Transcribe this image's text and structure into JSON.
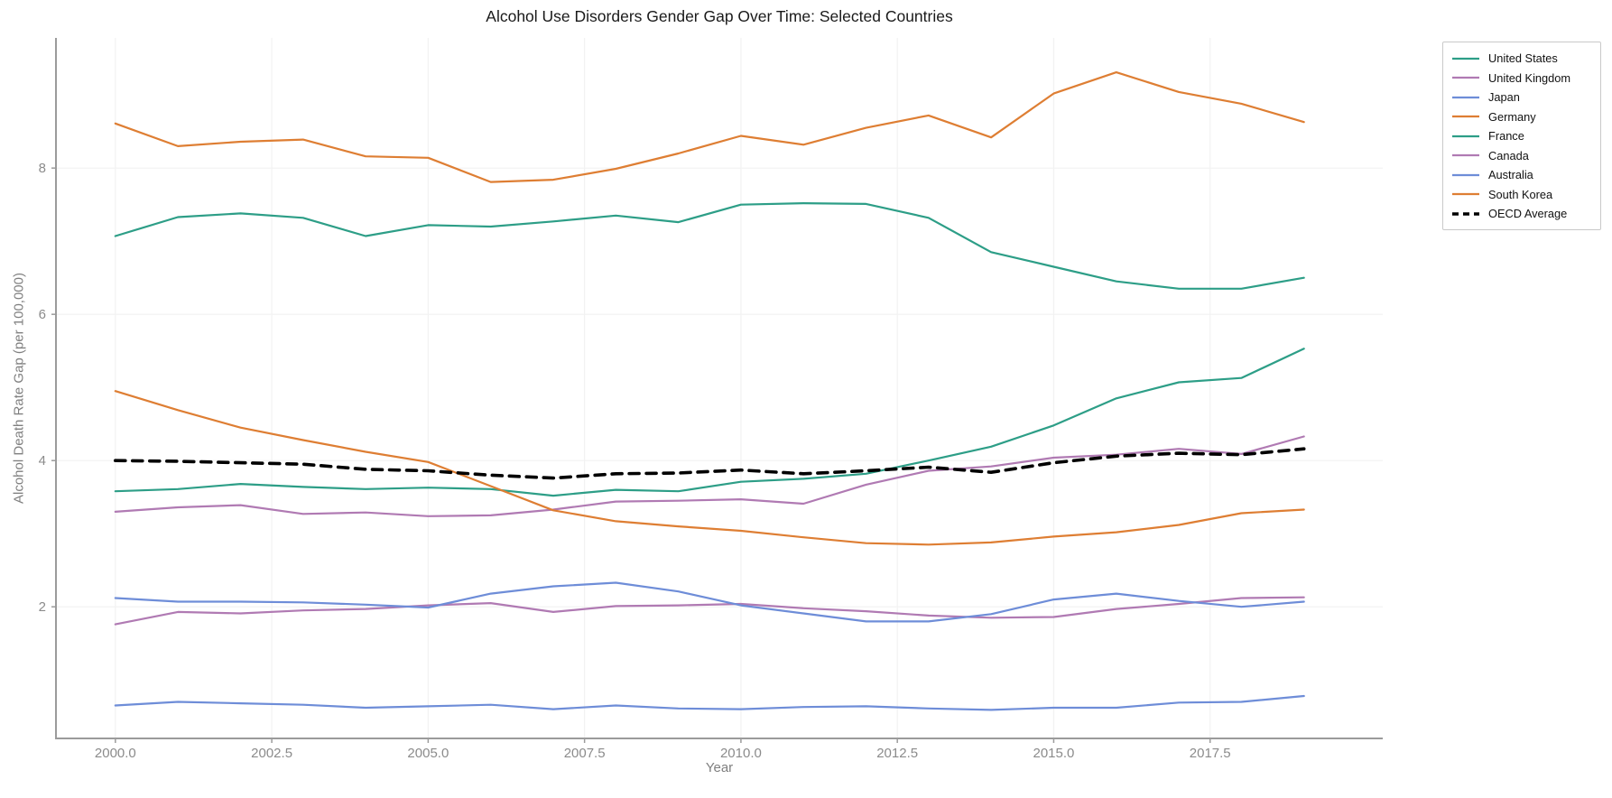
{
  "chart_data": {
    "type": "line",
    "title": "Alcohol Use Disorders Gender Gap Over Time: Selected Countries",
    "xlabel": "Year",
    "ylabel": "Alcohol Death Rate Gap (per 100,000)",
    "grid": true,
    "legend_position": "outside-top-right",
    "xlim": [
      1999.05,
      2020.26
    ],
    "ylim": [
      0.2,
      9.78
    ],
    "xticks": {
      "values": [
        2000,
        2002.5,
        2005,
        2007.5,
        2010,
        2012.5,
        2015,
        2017.5
      ],
      "labels": [
        "2000.0",
        "2002.5",
        "2005.0",
        "2007.5",
        "2010.0",
        "2012.5",
        "2015.0",
        "2017.5"
      ]
    },
    "yticks": {
      "values": [
        2,
        4,
        6,
        8
      ],
      "labels": [
        "2",
        "4",
        "6",
        "8"
      ]
    },
    "x": [
      2000,
      2001,
      2002,
      2003,
      2004,
      2005,
      2006,
      2007,
      2008,
      2009,
      2010,
      2011,
      2012,
      2013,
      2014,
      2015,
      2016,
      2017,
      2018,
      2019
    ],
    "series": [
      {
        "name": "United States",
        "color": "#2D9E87",
        "dash": null,
        "values": [
          3.58,
          3.61,
          3.68,
          3.64,
          3.61,
          3.63,
          3.61,
          3.52,
          3.6,
          3.58,
          3.71,
          3.75,
          3.82,
          4.0,
          4.19,
          4.48,
          4.85,
          5.07,
          5.13,
          5.53
        ]
      },
      {
        "name": "United Kingdom",
        "color": "#B07AB3",
        "dash": null,
        "values": [
          1.76,
          1.93,
          1.91,
          1.95,
          1.97,
          2.02,
          2.05,
          1.93,
          2.01,
          2.02,
          2.04,
          1.98,
          1.94,
          1.88,
          1.85,
          1.86,
          1.97,
          2.04,
          2.12,
          2.13
        ]
      },
      {
        "name": "Japan",
        "color": "#6E8DD8",
        "dash": null,
        "values": [
          0.65,
          0.7,
          0.68,
          0.66,
          0.62,
          0.64,
          0.66,
          0.6,
          0.65,
          0.61,
          0.6,
          0.63,
          0.64,
          0.61,
          0.59,
          0.62,
          0.62,
          0.69,
          0.7,
          0.78
        ]
      },
      {
        "name": "Germany",
        "color": "#DE7E33",
        "dash": null,
        "values": [
          8.61,
          8.3,
          8.36,
          8.39,
          8.16,
          8.14,
          7.81,
          7.84,
          7.99,
          8.2,
          8.44,
          8.32,
          8.55,
          8.72,
          8.42,
          9.02,
          9.31,
          9.04,
          8.88,
          8.63
        ]
      },
      {
        "name": "France",
        "color": "#2D9E87",
        "dash": null,
        "values": [
          7.07,
          7.33,
          7.38,
          7.32,
          7.07,
          7.22,
          7.2,
          7.27,
          7.35,
          7.26,
          7.5,
          7.52,
          7.51,
          7.32,
          6.85,
          6.65,
          6.45,
          6.35,
          6.35,
          6.5
        ]
      },
      {
        "name": "Canada",
        "color": "#B07AB3",
        "dash": null,
        "values": [
          3.3,
          3.36,
          3.39,
          3.27,
          3.29,
          3.24,
          3.25,
          3.33,
          3.44,
          3.45,
          3.47,
          3.41,
          3.67,
          3.86,
          3.92,
          4.04,
          4.08,
          4.16,
          4.09,
          4.33
        ]
      },
      {
        "name": "Australia",
        "color": "#6E8DD8",
        "dash": null,
        "values": [
          2.12,
          2.07,
          2.07,
          2.06,
          2.03,
          1.99,
          2.18,
          2.28,
          2.33,
          2.21,
          2.02,
          1.91,
          1.8,
          1.8,
          1.9,
          2.1,
          2.18,
          2.08,
          2.0,
          2.07
        ]
      },
      {
        "name": "South Korea",
        "color": "#DE7E33",
        "dash": null,
        "values": [
          4.95,
          4.69,
          4.45,
          4.28,
          4.12,
          3.98,
          3.65,
          3.32,
          3.17,
          3.1,
          3.04,
          2.95,
          2.87,
          2.85,
          2.88,
          2.96,
          3.02,
          3.12,
          3.28,
          3.33
        ]
      },
      {
        "name": "OECD Average",
        "color": "#000000",
        "dash": "11,8",
        "values": [
          4.0,
          3.99,
          3.97,
          3.95,
          3.88,
          3.86,
          3.8,
          3.76,
          3.82,
          3.83,
          3.87,
          3.82,
          3.86,
          3.91,
          3.84,
          3.97,
          4.06,
          4.1,
          4.08,
          4.16
        ]
      }
    ],
    "theme": {
      "background": "#ffffff",
      "grid_color": "#f2f2f2",
      "spine_color": "#9b9b9b",
      "tick_label_color": "#8b8b8b",
      "title_color": "#1a1a1a",
      "axis_label_color": "#7f7f7f",
      "legend_border_color": "#c9c9c9"
    }
  }
}
